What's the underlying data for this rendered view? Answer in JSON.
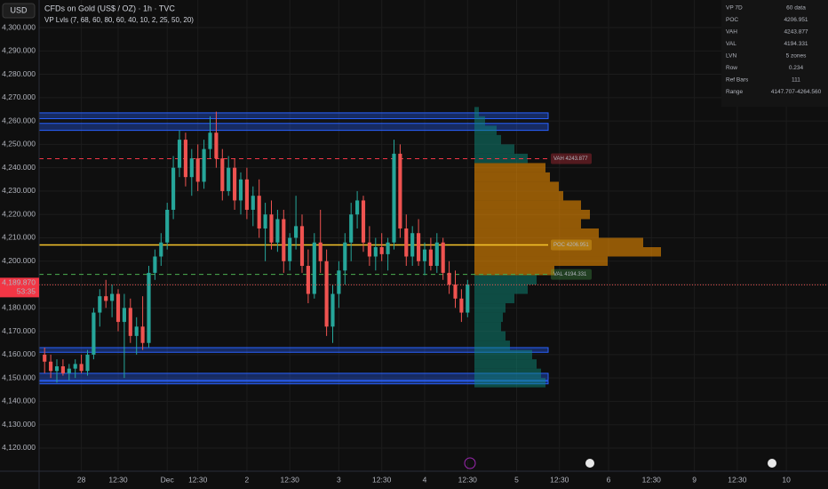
{
  "header": {
    "currency": "USD",
    "symbol": "CFDs on Gold (US$ / OZ) · 1h · TVC",
    "indicator": "VP Lvls (7, 68, 60, 80, 60, 40, 10, 2, 25, 50, 20)"
  },
  "table": {
    "rows": [
      [
        "VP 7D",
        "60 data"
      ],
      [
        "POC",
        "4206.951"
      ],
      [
        "VAH",
        "4243.877"
      ],
      [
        "VAL",
        "4194.331"
      ],
      [
        "LVN",
        "5 zones"
      ],
      [
        "Row",
        "0.234"
      ],
      [
        "Ref Bars",
        "111"
      ],
      [
        "Range",
        "4147.707-4264.560"
      ]
    ]
  },
  "chart_data": {
    "type": "candlestick",
    "ylim": [
      4113.9,
      4311.8
    ],
    "yticks": [
      {
        "value": 4120,
        "label": "4,120.000"
      },
      {
        "value": 4130,
        "label": "4,130.000"
      },
      {
        "value": 4140,
        "label": "4,140.000"
      },
      {
        "value": 4150,
        "label": "4,150.000"
      },
      {
        "value": 4160,
        "label": "4,160.000"
      },
      {
        "value": 4170,
        "label": "4,170.000"
      },
      {
        "value": 4180,
        "label": "4,180.000"
      },
      {
        "value": 4190,
        "label": "4,190.000"
      },
      {
        "value": 4200,
        "label": "4,200.000"
      },
      {
        "value": 4210,
        "label": "4,210.000"
      },
      {
        "value": 4220,
        "label": "4,220.000"
      },
      {
        "value": 4230,
        "label": "4,230.000"
      },
      {
        "value": 4240,
        "label": "4,240.000"
      },
      {
        "value": 4250,
        "label": "4,250.000"
      },
      {
        "value": 4260,
        "label": "4,260.000"
      },
      {
        "value": 4270,
        "label": "4,270.000"
      },
      {
        "value": 4280,
        "label": "4,280.000"
      },
      {
        "value": 4290,
        "label": "4,290.000"
      },
      {
        "value": 4300,
        "label": "4,300.000"
      }
    ],
    "xlim": [
      -0.9,
      127.8
    ],
    "xticks": [
      {
        "value": 6,
        "label": "28"
      },
      {
        "value": 12,
        "label": "12:30"
      },
      {
        "value": 20,
        "label": "Dec"
      },
      {
        "value": 25,
        "label": "12:30"
      },
      {
        "value": 33,
        "label": "2"
      },
      {
        "value": 40,
        "label": "12:30"
      },
      {
        "value": 48,
        "label": "3"
      },
      {
        "value": 55,
        "label": "12:30"
      },
      {
        "value": 62,
        "label": "4"
      },
      {
        "value": 69,
        "label": "12:30"
      },
      {
        "value": 77,
        "label": "5"
      },
      {
        "value": 84,
        "label": "12:30"
      },
      {
        "value": 92,
        "label": "6"
      },
      {
        "value": 99,
        "label": "12:30"
      },
      {
        "value": 106,
        "label": "9"
      },
      {
        "value": 113,
        "label": "12:30"
      },
      {
        "value": 121,
        "label": "10"
      }
    ],
    "up_color": "#26a69a",
    "down_color": "#ef5350",
    "open": [
      4160,
      4157,
      4153,
      4155,
      4152,
      4154,
      4156,
      4153,
      4160,
      4178,
      4185,
      4183,
      4186,
      4174,
      4180,
      4168,
      4172,
      4165,
      4195,
      4202,
      4208,
      4222,
      4240,
      4252,
      4236,
      4244,
      4234,
      4248,
      4255,
      4244,
      4230,
      4240,
      4226,
      4235,
      4222,
      4228,
      4214,
      4220,
      4208,
      4218,
      4200,
      4210,
      4215,
      4198,
      4186,
      4208,
      4200,
      4172,
      4186,
      4196,
      4208,
      4220,
      4226,
      4208,
      4202,
      4206,
      4203,
      4208,
      4246,
      4214,
      4202,
      4212,
      4200,
      4205,
      4198,
      4208,
      4195,
      4190,
      4184,
      4178
    ],
    "high": [
      4163,
      4160,
      4158,
      4158,
      4156,
      4158,
      4160,
      4162,
      4180,
      4188,
      4192,
      4190,
      4188,
      4186,
      4184,
      4176,
      4185,
      4198,
      4205,
      4212,
      4225,
      4245,
      4256,
      4255,
      4248,
      4250,
      4252,
      4262,
      4264,
      4248,
      4245,
      4244,
      4238,
      4240,
      4232,
      4235,
      4225,
      4226,
      4222,
      4222,
      4212,
      4228,
      4220,
      4205,
      4212,
      4222,
      4205,
      4190,
      4200,
      4212,
      4225,
      4230,
      4228,
      4215,
      4210,
      4212,
      4210,
      4252,
      4250,
      4220,
      4215,
      4218,
      4208,
      4210,
      4212,
      4210,
      4200,
      4196,
      4188,
      4192
    ],
    "low": [
      4152,
      4150,
      4148,
      4151,
      4149,
      4150,
      4152,
      4151,
      4158,
      4172,
      4180,
      4176,
      4170,
      4150,
      4165,
      4160,
      4162,
      4163,
      4192,
      4198,
      4205,
      4218,
      4236,
      4232,
      4228,
      4230,
      4231,
      4244,
      4240,
      4226,
      4228,
      4222,
      4220,
      4218,
      4215,
      4210,
      4200,
      4205,
      4204,
      4195,
      4196,
      4205,
      4195,
      4182,
      4184,
      4195,
      4168,
      4165,
      4180,
      4190,
      4200,
      4214,
      4204,
      4198,
      4196,
      4200,
      4196,
      4205,
      4210,
      4198,
      4198,
      4198,
      4194,
      4196,
      4195,
      4192,
      4186,
      4180,
      4174,
      4176
    ],
    "close": [
      4157,
      4153,
      4155,
      4152,
      4154,
      4156,
      4153,
      4160,
      4178,
      4185,
      4183,
      4186,
      4174,
      4180,
      4168,
      4172,
      4165,
      4195,
      4202,
      4208,
      4222,
      4240,
      4252,
      4236,
      4244,
      4234,
      4248,
      4255,
      4244,
      4230,
      4240,
      4226,
      4235,
      4222,
      4228,
      4214,
      4220,
      4208,
      4218,
      4200,
      4210,
      4215,
      4198,
      4186,
      4208,
      4200,
      4172,
      4186,
      4196,
      4208,
      4220,
      4226,
      4208,
      4202,
      4206,
      4203,
      4208,
      4246,
      4214,
      4202,
      4212,
      4200,
      4205,
      4198,
      4208,
      4195,
      4190,
      4184,
      4178,
      4190
    ],
    "levels": [
      {
        "name": "VAH",
        "value": 4243.877,
        "label": "VAH 4243.877",
        "color": "#f23645"
      },
      {
        "name": "POC",
        "value": 4206.951,
        "label": "POC 4206.951",
        "color": "#f7c52b"
      },
      {
        "name": "VAL",
        "value": 4194.331,
        "label": "VAL 4194.331",
        "color": "#4caf50"
      }
    ],
    "zones": [
      [
        4261,
        4263.5
      ],
      [
        4256,
        4259
      ],
      [
        4161,
        4163
      ],
      [
        4149,
        4152
      ],
      [
        4147.5,
        4148.6
      ]
    ],
    "zone_color": "#2962ff",
    "profile": {
      "prices": [
        4148,
        4152,
        4156,
        4160,
        4164,
        4168,
        4172,
        4176,
        4180,
        4184,
        4188,
        4192,
        4196,
        4200,
        4204,
        4208,
        4212,
        4216,
        4220,
        4224,
        4228,
        4232,
        4236,
        4240,
        4244,
        4248,
        4252,
        4256,
        4260,
        4264
      ],
      "volumes": [
        80,
        75,
        70,
        65,
        40,
        35,
        30,
        32,
        35,
        45,
        60,
        70,
        90,
        150,
        210,
        190,
        140,
        120,
        130,
        120,
        100,
        95,
        85,
        80,
        60,
        45,
        30,
        25,
        12,
        5
      ],
      "value_area_color": "#ff9800",
      "outside_color": "#0e8a7a"
    },
    "last_price": {
      "value": 4189.87,
      "label": "4,189.870",
      "countdown": "53:35"
    }
  }
}
